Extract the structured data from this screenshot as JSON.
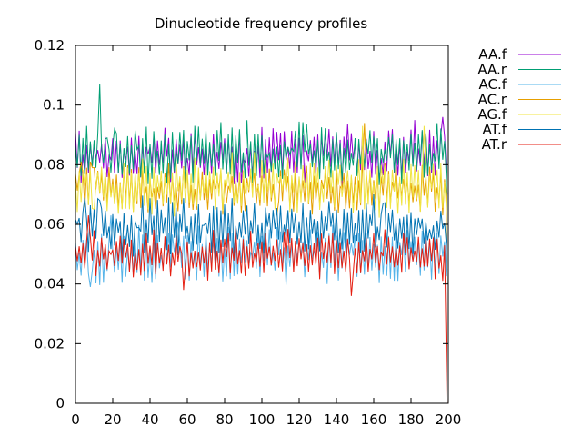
{
  "chart_data": {
    "type": "line",
    "title": "Dinucleotide frequency profiles",
    "xlabel": "",
    "ylabel": "",
    "xlim": [
      0,
      200
    ],
    "ylim": [
      0,
      0.12
    ],
    "xticks": [
      0,
      20,
      40,
      60,
      80,
      100,
      120,
      140,
      160,
      180,
      200
    ],
    "yticks": [
      0,
      0.02,
      0.04,
      0.06,
      0.08,
      0.1,
      0.12
    ],
    "ytick_labels": [
      "0",
      "0.02",
      "0.04",
      "0.06",
      "0.08",
      "0.1",
      "0.12"
    ],
    "grid": false,
    "legend_position": "top-right outside",
    "x_range": [
      0,
      199
    ],
    "series": [
      {
        "name": "AA.f",
        "color": "#9400d3",
        "mean": 0.083,
        "amplitude": 0.006,
        "seed": 11,
        "end": 0.07,
        "peaks": [
          [
            0,
            0.091
          ],
          [
            5,
            0.077
          ],
          [
            14,
            0.087
          ],
          [
            182,
            0.095
          ],
          [
            197,
            0.096
          ]
        ]
      },
      {
        "name": "AA.r",
        "color": "#009e73",
        "mean": 0.084,
        "amplitude": 0.006,
        "seed": 23,
        "end": 0.04,
        "peaks": [
          [
            2,
            0.09
          ],
          [
            6,
            0.093
          ],
          [
            13,
            0.107
          ],
          [
            17,
            0.089
          ],
          [
            21,
            0.092
          ]
        ]
      },
      {
        "name": "AC.f",
        "color": "#56b4e9",
        "mean": 0.05,
        "amplitude": 0.006,
        "seed": 37,
        "end": 0.045,
        "peaks": [
          [
            8,
            0.039
          ],
          [
            19,
            0.063
          ],
          [
            55,
            0.061
          ]
        ]
      },
      {
        "name": "AC.r",
        "color": "#e69f00",
        "mean": 0.072,
        "amplitude": 0.005,
        "seed": 41,
        "end": 0.04,
        "peaks": [
          [
            3,
            0.081
          ],
          [
            9,
            0.079
          ],
          [
            108,
            0.063
          ],
          [
            155,
            0.094
          ]
        ]
      },
      {
        "name": "AG.f",
        "color": "#f0e442",
        "mean": 0.073,
        "amplitude": 0.006,
        "seed": 53,
        "end": 0.06,
        "peaks": [
          [
            10,
            0.065
          ],
          [
            28,
            0.079
          ],
          [
            154,
            0.093
          ],
          [
            187,
            0.093
          ]
        ]
      },
      {
        "name": "AT.f",
        "color": "#0072b2",
        "mean": 0.059,
        "amplitude": 0.006,
        "seed": 67,
        "end": 0.04,
        "peaks": [
          [
            1,
            0.06
          ],
          [
            5,
            0.069
          ],
          [
            13,
            0.068
          ],
          [
            50,
            0.069
          ],
          [
            165,
            0.067
          ]
        ]
      },
      {
        "name": "AT.r",
        "color": "#e51e10",
        "mean": 0.05,
        "amplitude": 0.005,
        "seed": 79,
        "end": 0.0,
        "peaks": [
          [
            7,
            0.063
          ],
          [
            10,
            0.058
          ],
          [
            58,
            0.038
          ],
          [
            148,
            0.036
          ],
          [
            199,
            0.013
          ]
        ]
      }
    ]
  }
}
